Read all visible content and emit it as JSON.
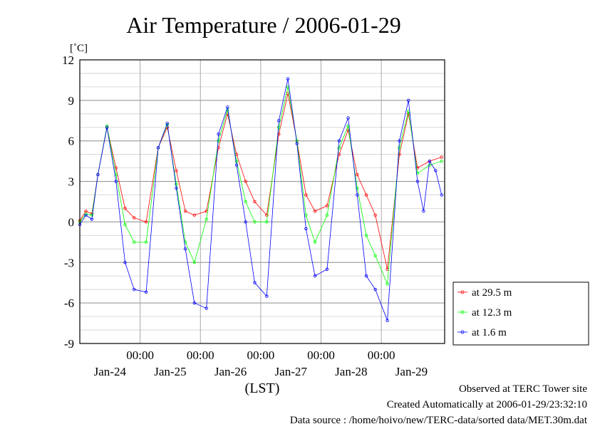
{
  "chart_data": {
    "type": "line",
    "title": "Air Temperature / 2006-01-29",
    "yunit": "[˚C]",
    "xlabel": "(LST)",
    "ylim": [
      -9,
      12
    ],
    "yticks": [
      12,
      9,
      6,
      3,
      0,
      -3,
      -6,
      -9
    ],
    "xlim": [
      0,
      6.05
    ],
    "time_labels": [
      "00:00",
      "00:00",
      "00:00",
      "00:00",
      "00:00"
    ],
    "time_label_positions": [
      1,
      2,
      3,
      4,
      5
    ],
    "date_labels": [
      "Jan-24",
      "Jan-25",
      "Jan-26",
      "Jan-27",
      "Jan-28",
      "Jan-29"
    ],
    "date_label_positions": [
      0.5,
      1.5,
      2.5,
      3.5,
      4.5,
      5.5
    ],
    "grid": true,
    "legend_position": "right",
    "series": [
      {
        "name": "at 29.5 m",
        "color": "#ff0000",
        "points": [
          [
            0.0,
            0.1
          ],
          [
            0.1,
            0.8
          ],
          [
            0.2,
            0.6
          ],
          [
            0.3,
            3.5
          ],
          [
            0.45,
            7.0
          ],
          [
            0.6,
            4.0
          ],
          [
            0.75,
            1.0
          ],
          [
            0.9,
            0.3
          ],
          [
            1.1,
            0.0
          ],
          [
            1.3,
            5.5
          ],
          [
            1.45,
            7.0
          ],
          [
            1.6,
            3.8
          ],
          [
            1.75,
            0.8
          ],
          [
            1.9,
            0.5
          ],
          [
            2.1,
            0.8
          ],
          [
            2.3,
            5.5
          ],
          [
            2.45,
            8.0
          ],
          [
            2.6,
            5.0
          ],
          [
            2.75,
            3.0
          ],
          [
            2.9,
            1.5
          ],
          [
            3.1,
            0.5
          ],
          [
            3.3,
            6.5
          ],
          [
            3.45,
            9.5
          ],
          [
            3.6,
            6.0
          ],
          [
            3.75,
            2.0
          ],
          [
            3.9,
            0.8
          ],
          [
            4.1,
            1.2
          ],
          [
            4.3,
            5.0
          ],
          [
            4.45,
            6.8
          ],
          [
            4.6,
            3.5
          ],
          [
            4.75,
            2.0
          ],
          [
            4.9,
            0.5
          ],
          [
            5.1,
            -3.5
          ],
          [
            5.3,
            5.0
          ],
          [
            5.45,
            8.0
          ],
          [
            5.6,
            4.0
          ],
          [
            5.8,
            4.5
          ],
          [
            6.0,
            4.8
          ]
        ]
      },
      {
        "name": "at 12.3 m",
        "color": "#00ff00",
        "points": [
          [
            0.0,
            0.0
          ],
          [
            0.1,
            0.6
          ],
          [
            0.2,
            0.5
          ],
          [
            0.3,
            3.5
          ],
          [
            0.45,
            7.1
          ],
          [
            0.6,
            3.5
          ],
          [
            0.75,
            -0.2
          ],
          [
            0.9,
            -1.5
          ],
          [
            1.1,
            -1.5
          ],
          [
            1.3,
            5.5
          ],
          [
            1.45,
            7.2
          ],
          [
            1.6,
            2.8
          ],
          [
            1.75,
            -1.5
          ],
          [
            1.9,
            -3.0
          ],
          [
            2.1,
            0.2
          ],
          [
            2.3,
            6.0
          ],
          [
            2.45,
            8.3
          ],
          [
            2.6,
            4.5
          ],
          [
            2.75,
            1.5
          ],
          [
            2.9,
            0.0
          ],
          [
            3.1,
            0.0
          ],
          [
            3.3,
            7.0
          ],
          [
            3.45,
            10.0
          ],
          [
            3.6,
            6.0
          ],
          [
            3.75,
            0.5
          ],
          [
            3.9,
            -1.5
          ],
          [
            4.1,
            0.5
          ],
          [
            4.3,
            5.5
          ],
          [
            4.45,
            7.1
          ],
          [
            4.6,
            2.5
          ],
          [
            4.75,
            -1.0
          ],
          [
            4.9,
            -2.5
          ],
          [
            5.1,
            -4.6
          ],
          [
            5.3,
            5.5
          ],
          [
            5.45,
            8.2
          ],
          [
            5.6,
            3.6
          ],
          [
            5.8,
            4.2
          ],
          [
            6.0,
            4.5
          ]
        ]
      },
      {
        "name": "at 1.6 m",
        "color": "#0000ff",
        "points": [
          [
            0.0,
            -0.2
          ],
          [
            0.1,
            0.5
          ],
          [
            0.2,
            0.2
          ],
          [
            0.3,
            3.5
          ],
          [
            0.45,
            7.0
          ],
          [
            0.6,
            3.0
          ],
          [
            0.75,
            -3.0
          ],
          [
            0.9,
            -5.0
          ],
          [
            1.1,
            -5.2
          ],
          [
            1.3,
            5.5
          ],
          [
            1.45,
            7.3
          ],
          [
            1.6,
            2.5
          ],
          [
            1.75,
            -2.0
          ],
          [
            1.9,
            -6.0
          ],
          [
            2.1,
            -6.4
          ],
          [
            2.3,
            6.5
          ],
          [
            2.45,
            8.5
          ],
          [
            2.6,
            4.2
          ],
          [
            2.75,
            0.0
          ],
          [
            2.9,
            -4.5
          ],
          [
            3.1,
            -5.5
          ],
          [
            3.3,
            7.5
          ],
          [
            3.45,
            10.6
          ],
          [
            3.6,
            5.8
          ],
          [
            3.75,
            -0.5
          ],
          [
            3.9,
            -4.0
          ],
          [
            4.1,
            -3.5
          ],
          [
            4.3,
            6.0
          ],
          [
            4.45,
            7.7
          ],
          [
            4.6,
            2.0
          ],
          [
            4.75,
            -4.0
          ],
          [
            4.9,
            -5.0
          ],
          [
            5.1,
            -7.3
          ],
          [
            5.3,
            6.0
          ],
          [
            5.45,
            9.0
          ],
          [
            5.6,
            3.0
          ],
          [
            5.7,
            0.8
          ],
          [
            5.8,
            4.5
          ],
          [
            5.9,
            3.8
          ],
          [
            6.0,
            2.0
          ]
        ]
      }
    ]
  },
  "footer": {
    "line1": "Observed at TERC Tower site",
    "line2": "Created Automatically at 2006-01-29/23:32:10",
    "line3": "Data source : /home/hoivo/new/TERC-data/sorted  data/MET.30m.dat"
  }
}
